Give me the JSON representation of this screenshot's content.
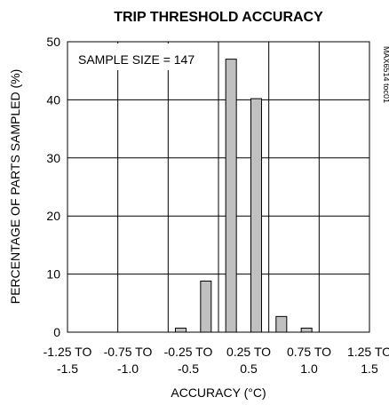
{
  "chart_data": {
    "type": "bar",
    "title": "TRIP THRESHOLD ACCURACY",
    "xlabel": "ACCURACY (°C)",
    "ylabel": "PERCENTAGE OF PARTS SAMPLED (%)",
    "ylim": [
      0,
      50
    ],
    "yticks": [
      0,
      10,
      20,
      30,
      40,
      50
    ],
    "xticks": [
      {
        "line1": "-1.25 TO",
        "line2": "-1.5"
      },
      {
        "line1": "-0.75 TO",
        "line2": "-1.0"
      },
      {
        "line1": "-0.25 TO",
        "line2": "-0.5"
      },
      {
        "line1": "0.25 TO",
        "line2": "0.5"
      },
      {
        "line1": "0.75 TO",
        "line2": "1.0"
      },
      {
        "line1": "1.25 TO",
        "line2": "1.5"
      }
    ],
    "bars": [
      {
        "position": -0.375,
        "value": 0.7
      },
      {
        "position": -0.125,
        "value": 8.8
      },
      {
        "position": 0.125,
        "value": 47
      },
      {
        "position": 0.375,
        "value": 40.2
      },
      {
        "position": 0.625,
        "value": 2.7
      },
      {
        "position": 0.875,
        "value": 0.7
      }
    ],
    "annotation": "SAMPLE SIZE = 147",
    "part_code": "MAX6514 toc01",
    "grid": true,
    "bar_color": "#c0c0c0"
  }
}
